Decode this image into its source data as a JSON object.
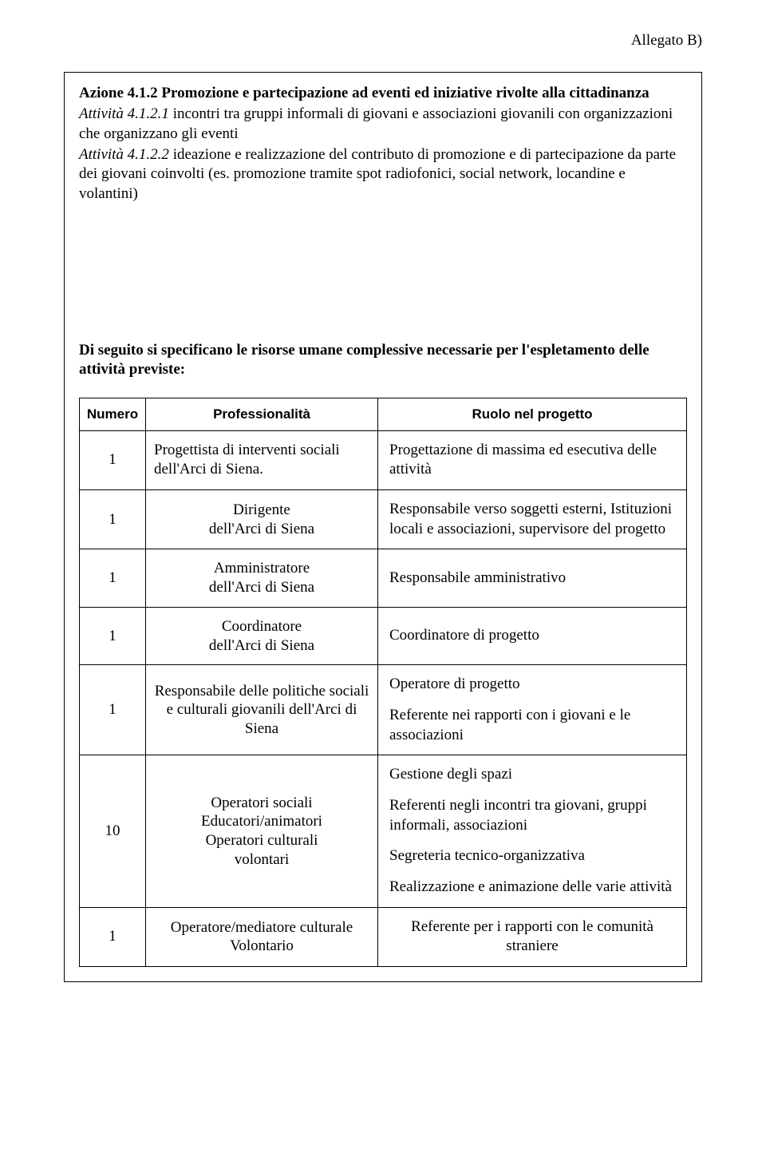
{
  "header": {
    "right_text": "Allegato B)"
  },
  "content_block": {
    "azione_label": "Azione  4.1.2 Promozione e partecipazione ad eventi ed iniziative rivolte alla cittadinanza",
    "attivita_1_label": "Attività 4.1.2.1",
    "attivita_1_text": " incontri tra gruppi informali di giovani e associazioni giovanili con organizzazioni che organizzano gli eventi",
    "attivita_2_label": "Attività 4.1.2.2",
    "attivita_2_text": " ideazione e  realizzazione del contributo di promozione e di partecipazione da parte dei giovani coinvolti  (es. promozione tramite spot radiofonici, social network, locandine e volantini)",
    "lead_text": "Di seguito si specificano le risorse umane complessive necessarie per l'espletamento delle attività previste:"
  },
  "table": {
    "headers": {
      "col1": "Numero",
      "col2": "Professionalità",
      "col3": "Ruolo nel progetto"
    },
    "rows": [
      {
        "num": "1",
        "prof": "Progettista di interventi sociali dell'Arci di Siena.",
        "role": "Progettazione di massima ed esecutiva delle attività"
      },
      {
        "num": "1",
        "prof_line1": "Dirigente",
        "prof_line2": "dell'Arci di Siena",
        "role": "Responsabile  verso soggetti esterni, Istituzioni locali e associazioni, supervisore  del progetto"
      },
      {
        "num": "1",
        "prof_line1": "Amministratore",
        "prof_line2": "dell'Arci di Siena",
        "role": "Responsabile amministrativo"
      },
      {
        "num": "1",
        "prof_line1": "Coordinatore",
        "prof_line2": "dell'Arci di Siena",
        "role": "Coordinatore di progetto"
      },
      {
        "num": "1",
        "prof": "Responsabile delle  politiche sociali e culturali  giovanili dell'Arci di Siena",
        "role_p1": "Operatore di progetto",
        "role_p2": "Referente nei  rapporti con i giovani e le associazioni"
      },
      {
        "num": "10",
        "prof_line1": "Operatori sociali",
        "prof_line2": "Educatori/animatori",
        "prof_line3": "Operatori culturali",
        "prof_line4": "volontari",
        "role_p1": "Gestione degli spazi",
        "role_p2": "Referenti negli incontri tra giovani, gruppi informali, associazioni",
        "role_p3": "Segreteria tecnico-organizzativa",
        "role_p4": "Realizzazione e animazione  delle varie attività"
      },
      {
        "num": "1",
        "prof_line1": "Operatore/mediatore culturale",
        "prof_line2": "Volontario",
        "role_p1": "Referente per i rapporti con le comunità straniere"
      }
    ]
  }
}
